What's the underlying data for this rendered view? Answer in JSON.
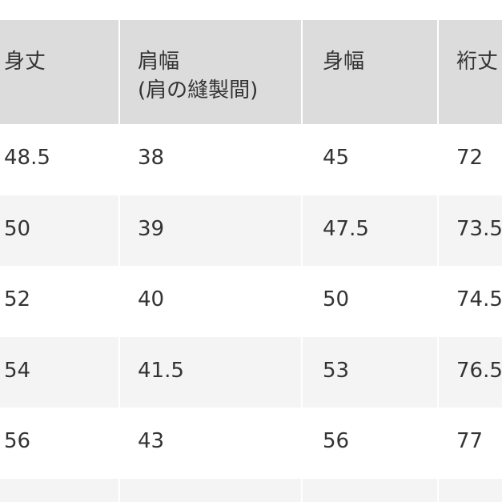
{
  "table": {
    "header": [
      [
        "身丈"
      ],
      [
        "肩幅",
        "(肩の縫製間)"
      ],
      [
        "身幅"
      ],
      [
        "裄丈"
      ]
    ],
    "rows": [
      [
        48.5,
        38,
        45,
        72
      ],
      [
        50,
        39,
        47.5,
        73.5
      ],
      [
        52,
        40,
        50,
        74.5
      ],
      [
        54,
        41.5,
        53,
        76.5
      ],
      [
        56,
        43,
        56,
        77
      ]
    ]
  }
}
